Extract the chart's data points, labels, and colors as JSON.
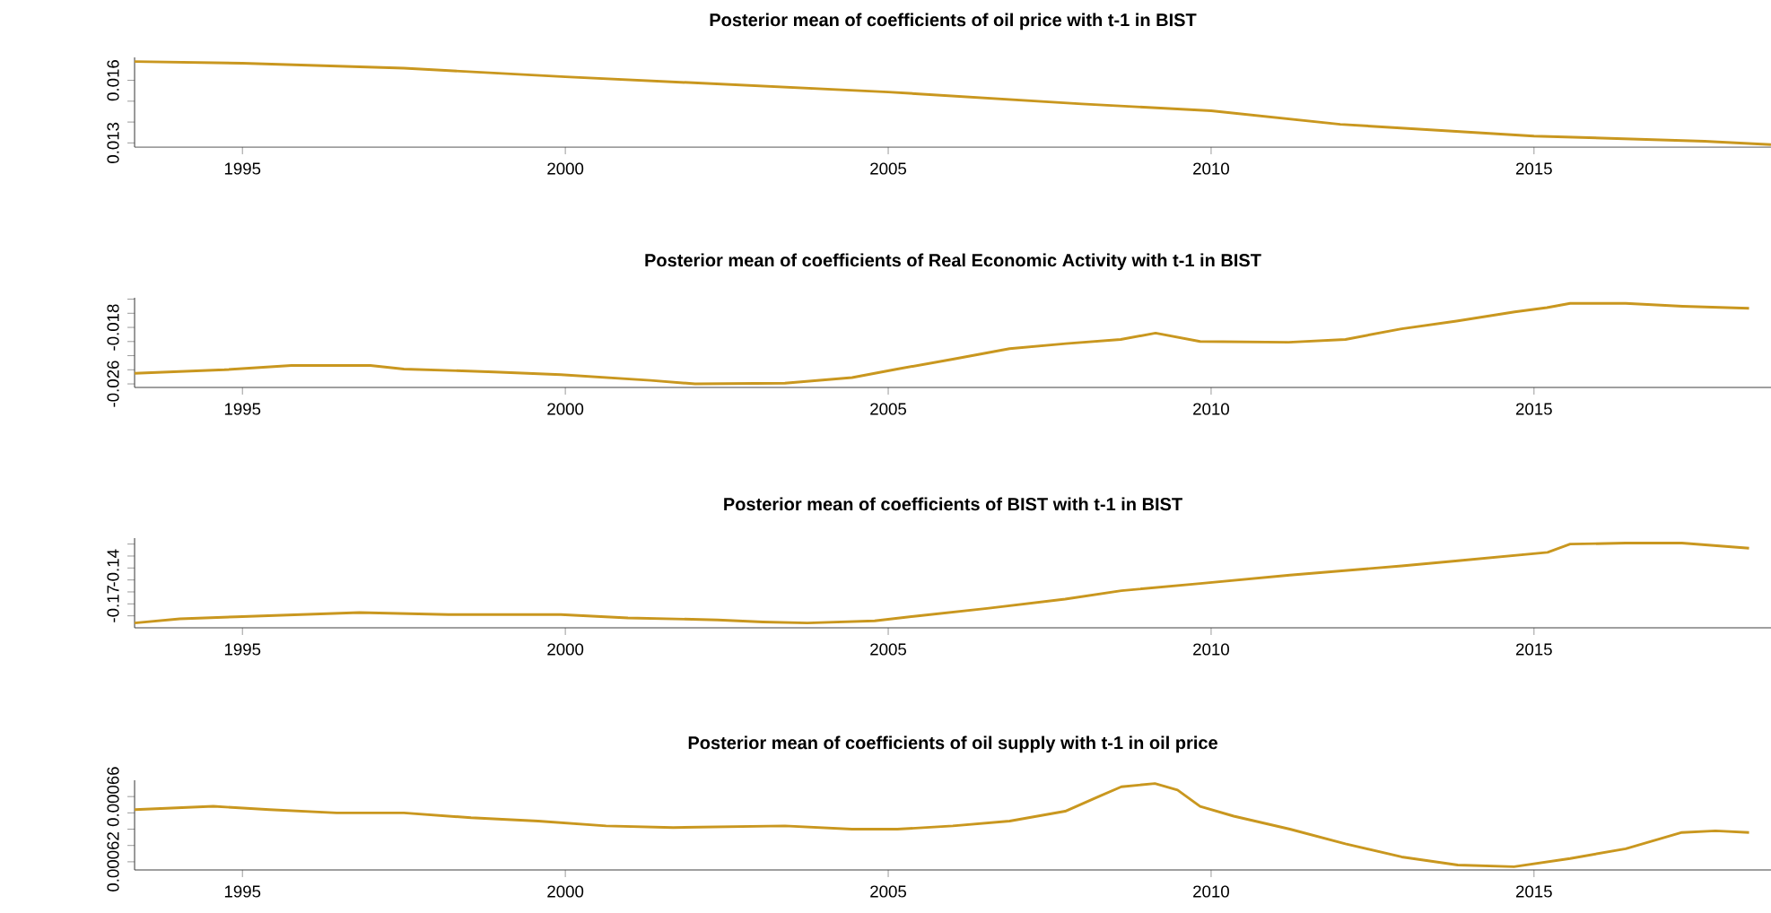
{
  "chart_data": [
    {
      "type": "line",
      "title": "Posterior mean of coefficients of oil price with t-1 in BIST",
      "color": "#c9971f",
      "x": [
        1993.33,
        1995,
        1997.5,
        2000,
        2005,
        2008,
        2010,
        2012,
        2015,
        2017.64,
        2018.67
      ],
      "values": [
        0.0169,
        0.01682,
        0.01658,
        0.01617,
        0.01544,
        0.01487,
        0.01454,
        0.01389,
        0.01333,
        0.01308,
        0.01292
      ],
      "xlim": [
        1993.33,
        2018.67
      ],
      "ylim": [
        0.0128,
        0.0171
      ],
      "xticks": [
        1995,
        2000,
        2005,
        2010,
        2015
      ],
      "yticks": [
        0.013,
        {
          "value": 0.014,
          "label": null
        },
        {
          "value": 0.015,
          "label": null
        },
        0.016
      ]
    },
    {
      "type": "line",
      "title": "Posterior mean of coefficients of Real Economic Activity with t-1 in BIST",
      "color": "#c9971f",
      "x": [
        1993.33,
        1994.72,
        1995.76,
        1996.98,
        1997.5,
        1998.9,
        1999.93,
        2001.32,
        2002.01,
        2003.4,
        2004.44,
        2005.14,
        2006.0,
        2006.88,
        2007.75,
        2008.6,
        2009.14,
        2009.83,
        2011.2,
        2012.08,
        2012.95,
        2013.8,
        2014.7,
        2015.2,
        2015.56,
        2016.42,
        2017.3,
        2018.33
      ],
      "values": [
        -0.0245,
        -0.024,
        -0.0234,
        -0.0234,
        -0.0239,
        -0.0243,
        -0.0247,
        -0.0255,
        -0.026,
        -0.0259,
        -0.0251,
        -0.0239,
        -0.0225,
        -0.021,
        -0.0203,
        -0.0197,
        -0.0188,
        -0.02,
        -0.0201,
        -0.0197,
        -0.0182,
        -0.0171,
        -0.0158,
        -0.0152,
        -0.0146,
        -0.0146,
        -0.015,
        -0.0153
      ],
      "xlim": [
        1993.33,
        2018.67
      ],
      "ylim": [
        -0.0265,
        -0.0138
      ],
      "xticks": [
        1995,
        2000,
        2005,
        2010,
        2015
      ],
      "yticks": [
        -0.026,
        {
          "value": -0.024,
          "label": null
        },
        {
          "value": -0.022,
          "label": null
        },
        {
          "value": -0.02,
          "label": null
        },
        -0.018,
        {
          "value": -0.016,
          "label": null
        },
        {
          "value": -0.014,
          "label": null
        }
      ]
    },
    {
      "type": "line",
      "title": "Posterior mean of coefficients of BIST with t-1 in BIST",
      "color": "#c9971f",
      "x": [
        1993.33,
        1994.03,
        1994.9,
        1996.81,
        1998.19,
        1999.93,
        2000.97,
        2002.36,
        2003.06,
        2003.75,
        2004.79,
        2005.49,
        2006.53,
        2007.74,
        2008.61,
        2009.83,
        2011.22,
        2012.95,
        2013.82,
        2015.21,
        2015.56,
        2016.42,
        2017.29,
        2018.33
      ],
      "values": [
        -0.186,
        -0.1825,
        -0.1808,
        -0.1773,
        -0.179,
        -0.179,
        -0.1817,
        -0.1834,
        -0.1851,
        -0.186,
        -0.1842,
        -0.1799,
        -0.1738,
        -0.166,
        -0.159,
        -0.153,
        -0.146,
        -0.1382,
        -0.1339,
        -0.1269,
        -0.12,
        -0.1192,
        -0.1192,
        -0.1235
      ],
      "xlim": [
        1993.33,
        2018.67
      ],
      "ylim": [
        -0.19,
        -0.115
      ],
      "xticks": [
        1995,
        2000,
        2005,
        2010,
        2015
      ],
      "yticks": [
        {
          "value": -0.18,
          "label": null
        },
        -0.17,
        {
          "value": -0.16,
          "label": null
        },
        {
          "value": -0.15,
          "label": null
        },
        -0.14,
        {
          "value": -0.13,
          "label": null
        },
        {
          "value": -0.12,
          "label": null
        }
      ]
    },
    {
      "type": "line",
      "title": "Posterior mean of coefficients of oil supply with t-1 in oil price",
      "color": "#c9971f",
      "x": [
        1993.33,
        1994.55,
        1995.42,
        1996.46,
        1997.5,
        1998.54,
        1999.58,
        2000.63,
        2001.67,
        2003.4,
        2004.44,
        2005.14,
        2006.0,
        2006.88,
        2007.74,
        2008.26,
        2008.61,
        2009.13,
        2009.48,
        2009.83,
        2010.35,
        2011.22,
        2012.08,
        2012.95,
        2013.82,
        2014.69,
        2015.56,
        2016.42,
        2017.29,
        2017.81,
        2018.33
      ],
      "values": [
        0.000652,
        0.000654,
        0.000652,
        0.00065,
        0.00065,
        0.000647,
        0.000645,
        0.000642,
        0.000641,
        0.000642,
        0.00064,
        0.00064,
        0.000642,
        0.000645,
        0.000651,
        0.00066,
        0.000666,
        0.000668,
        0.000664,
        0.000654,
        0.000648,
        0.00064,
        0.000631,
        0.000623,
        0.000618,
        0.000617,
        0.000622,
        0.000628,
        0.000638,
        0.000639,
        0.000638
      ],
      "xlim": [
        1993.33,
        2018.67
      ],
      "ylim": [
        0.000615,
        0.00067
      ],
      "xticks": [
        1995,
        2000,
        2005,
        2010,
        2015
      ],
      "yticks": [
        0.00062,
        {
          "value": 0.00063,
          "label": null
        },
        {
          "value": 0.00064,
          "label": null
        },
        {
          "value": 0.00065,
          "label": null
        },
        0.00066
      ]
    }
  ]
}
